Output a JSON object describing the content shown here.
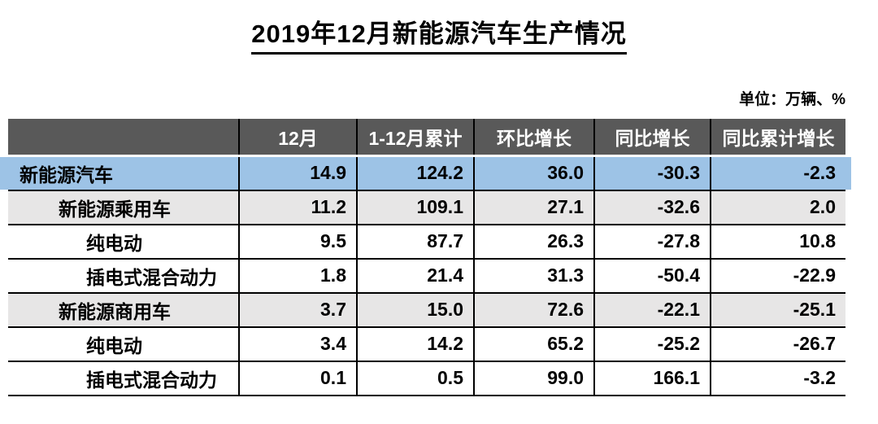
{
  "chart_data": {
    "type": "table",
    "title": "2019年12月新能源汽车生产情况",
    "unit_label": "单位：万辆、%",
    "columns": [
      "",
      "12月",
      "1-12月累计",
      "环比增长",
      "同比增长",
      "同比累计增长"
    ],
    "rows": [
      {
        "label": "新能源汽车",
        "indent": 0,
        "highlight": "blue",
        "values": [
          "14.9",
          "124.2",
          "36.0",
          "-30.3",
          "-2.3"
        ]
      },
      {
        "label": "新能源乘用车",
        "indent": 1,
        "highlight": "gray",
        "values": [
          "11.2",
          "109.1",
          "27.1",
          "-32.6",
          "2.0"
        ]
      },
      {
        "label": "纯电动",
        "indent": 2,
        "highlight": "white",
        "values": [
          "9.5",
          "87.7",
          "26.3",
          "-27.8",
          "10.8"
        ]
      },
      {
        "label": "插电式混合动力",
        "indent": 2,
        "highlight": "white",
        "values": [
          "1.8",
          "21.4",
          "31.3",
          "-50.4",
          "-22.9"
        ]
      },
      {
        "label": "新能源商用车",
        "indent": 1,
        "highlight": "gray",
        "values": [
          "3.7",
          "15.0",
          "72.6",
          "-22.1",
          "-25.1"
        ]
      },
      {
        "label": "纯电动",
        "indent": 2,
        "highlight": "white",
        "values": [
          "3.4",
          "14.2",
          "65.2",
          "-25.2",
          "-26.7"
        ]
      },
      {
        "label": "插电式混合动力",
        "indent": 2,
        "highlight": "white",
        "values": [
          "0.1",
          "0.5",
          "99.0",
          "166.1",
          "-3.2"
        ]
      }
    ]
  },
  "colors": {
    "header_bg": "#595959",
    "header_text": "#FFFFFF",
    "highlight_blue": "#9DC3E6",
    "highlight_gray": "#E7E6E6",
    "border": "#000000"
  }
}
